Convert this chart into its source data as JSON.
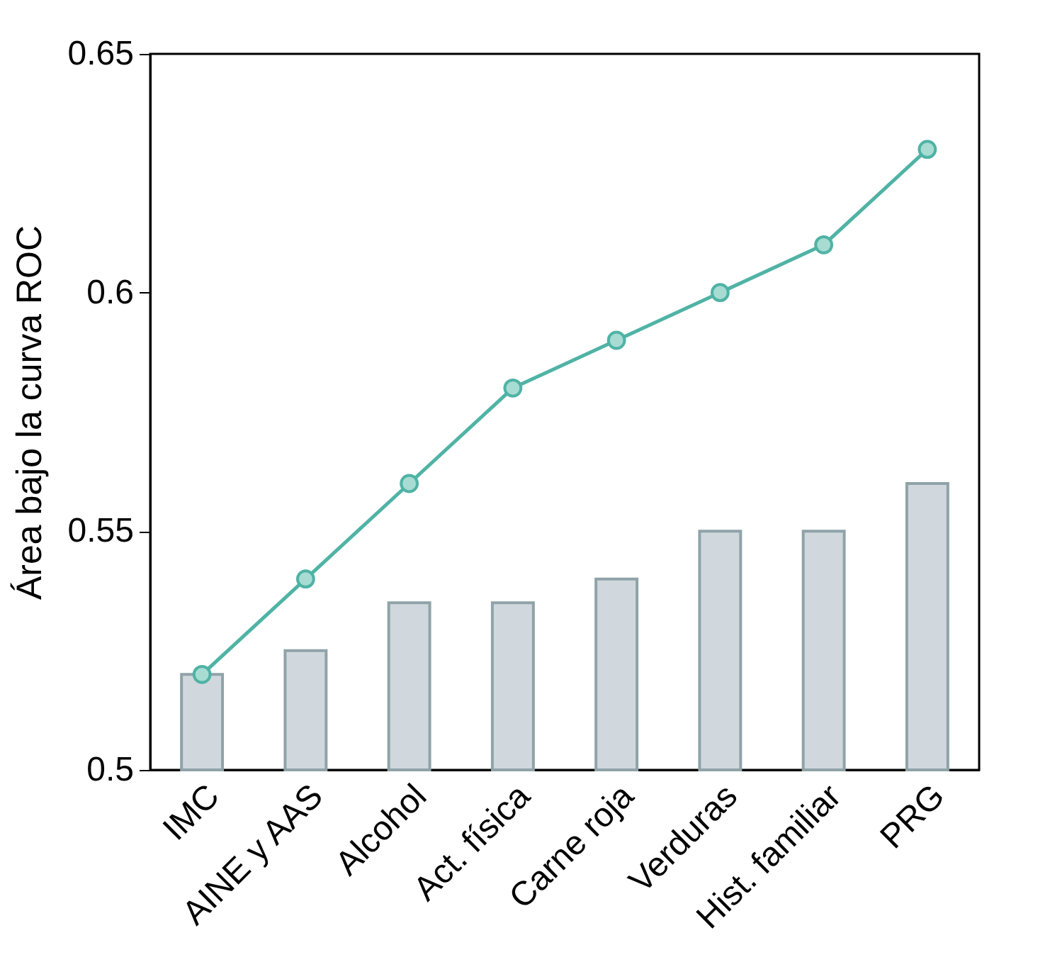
{
  "chart_data": {
    "type": "bar",
    "ylabel": "Área bajo la curva ROC",
    "categories": [
      "IMC",
      "AINE y AAS",
      "Alcohol",
      "Act. física",
      "Carne roja",
      "Verduras",
      "Hist. familiar",
      "PRG"
    ],
    "series": [
      {
        "color": "#d0d8de",
        "values": [
          0.52,
          0.525,
          0.535,
          0.535,
          0.54,
          0.55,
          0.55,
          0.56
        ]
      },
      {
        "type": "line",
        "color": "#4fb3a5",
        "values": [
          0.52,
          0.54,
          0.56,
          0.58,
          0.59,
          0.6,
          0.61,
          0.63
        ]
      }
    ],
    "ylim": [
      0.5,
      0.65
    ],
    "yticks": [
      0.5,
      0.55,
      0.6,
      0.65
    ],
    "marker": "circle",
    "grid": false
  }
}
